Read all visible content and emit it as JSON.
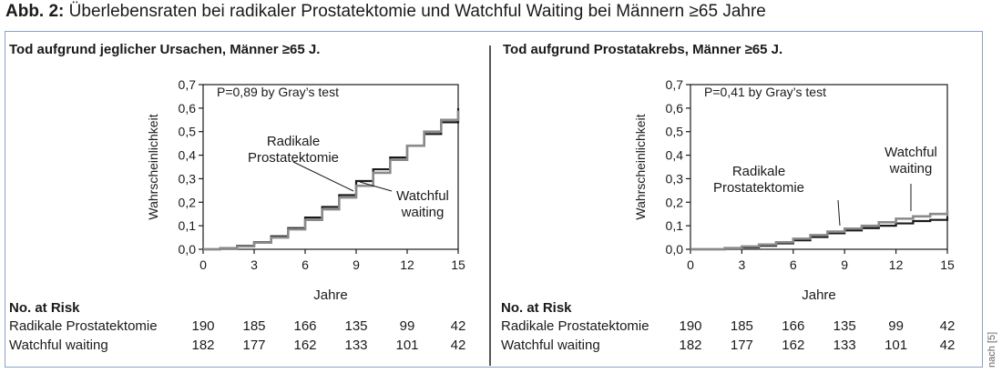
{
  "figure": {
    "label": "Abb. 2:",
    "title": "Überlebensraten bei radikaler Prostatektomie und Watchful Waiting bei Männern ≥65 Jahre",
    "source": "nach [5]"
  },
  "chart_data": [
    {
      "type": "line",
      "title": "Tod aufgrund jeglicher Ursachen, Männer ≥65 J.",
      "xlabel": "Jahre",
      "ylabel": "Wahrscheinlichkeit",
      "xlim": [
        0,
        15
      ],
      "ylim": [
        0,
        0.7
      ],
      "x_ticks": [
        "0",
        "3",
        "6",
        "9",
        "12",
        "15"
      ],
      "y_ticks": [
        "0,0",
        "0,1",
        "0,2",
        "0,3",
        "0,4",
        "0,5",
        "0,6",
        "0,7"
      ],
      "annotation": "P=0,89 by Gray’s test",
      "series_labels": {
        "rp": "Radikale Prostatektomie",
        "ww": "Watchful waiting"
      },
      "series": [
        {
          "name": "Radikale Prostatektomie",
          "color": "#1a1a1a",
          "x": [
            0,
            1,
            2,
            3,
            4,
            5,
            6,
            7,
            8,
            9,
            10,
            11,
            12,
            13,
            14,
            15
          ],
          "y": [
            0,
            0.005,
            0.015,
            0.03,
            0.055,
            0.09,
            0.135,
            0.18,
            0.23,
            0.29,
            0.34,
            0.39,
            0.44,
            0.49,
            0.54,
            0.6
          ]
        },
        {
          "name": "Watchful waiting",
          "color": "#8a8a8a",
          "x": [
            0,
            1,
            2,
            3,
            4,
            5,
            6,
            7,
            8,
            9,
            10,
            11,
            12,
            13,
            14,
            15
          ],
          "y": [
            0,
            0.004,
            0.013,
            0.028,
            0.05,
            0.085,
            0.125,
            0.17,
            0.22,
            0.27,
            0.325,
            0.38,
            0.44,
            0.5,
            0.55,
            0.59
          ]
        }
      ],
      "risk_table": {
        "header": "No. at Risk",
        "rows": [
          {
            "label": "Radikale Prostatektomie",
            "values": [
              "190",
              "185",
              "166",
              "135",
              "99",
              "42"
            ]
          },
          {
            "label": "Watchful waiting",
            "values": [
              "182",
              "177",
              "162",
              "133",
              "101",
              "42"
            ]
          }
        ]
      }
    },
    {
      "type": "line",
      "title": "Tod aufgrund Prostatakrebs, Männer ≥65 J.",
      "xlabel": "Jahre",
      "ylabel": "Wahrscheinlichkeit",
      "xlim": [
        0,
        15
      ],
      "ylim": [
        0,
        0.7
      ],
      "x_ticks": [
        "0",
        "3",
        "6",
        "9",
        "12",
        "15"
      ],
      "y_ticks": [
        "0,0",
        "0,1",
        "0,2",
        "0,3",
        "0,4",
        "0,5",
        "0,6",
        "0,7"
      ],
      "annotation": "P=0,41 by Gray’s test",
      "series_labels": {
        "rp": "Radikale Prostatektomie",
        "ww_line1": "Watchful",
        "ww_line2": "waiting"
      },
      "series": [
        {
          "name": "Radikale Prostatektomie",
          "color": "#1a1a1a",
          "x": [
            0,
            1,
            2,
            3,
            4,
            5,
            6,
            7,
            8,
            9,
            10,
            11,
            12,
            13,
            14,
            15
          ],
          "y": [
            0,
            0,
            0.003,
            0.008,
            0.015,
            0.025,
            0.038,
            0.052,
            0.068,
            0.08,
            0.09,
            0.1,
            0.11,
            0.12,
            0.125,
            0.14
          ]
        },
        {
          "name": "Watchful waiting",
          "color": "#8a8a8a",
          "x": [
            0,
            1,
            2,
            3,
            4,
            5,
            6,
            7,
            8,
            9,
            10,
            11,
            12,
            13,
            14,
            15
          ],
          "y": [
            0,
            0,
            0.005,
            0.012,
            0.02,
            0.03,
            0.045,
            0.06,
            0.075,
            0.088,
            0.1,
            0.115,
            0.13,
            0.14,
            0.15,
            0.165
          ]
        }
      ],
      "risk_table": {
        "header": "No. at Risk",
        "rows": [
          {
            "label": "Radikale Prostatektomie",
            "values": [
              "190",
              "185",
              "166",
              "135",
              "99",
              "42"
            ]
          },
          {
            "label": "Watchful waiting",
            "values": [
              "182",
              "177",
              "162",
              "133",
              "101",
              "42"
            ]
          }
        ]
      }
    }
  ]
}
